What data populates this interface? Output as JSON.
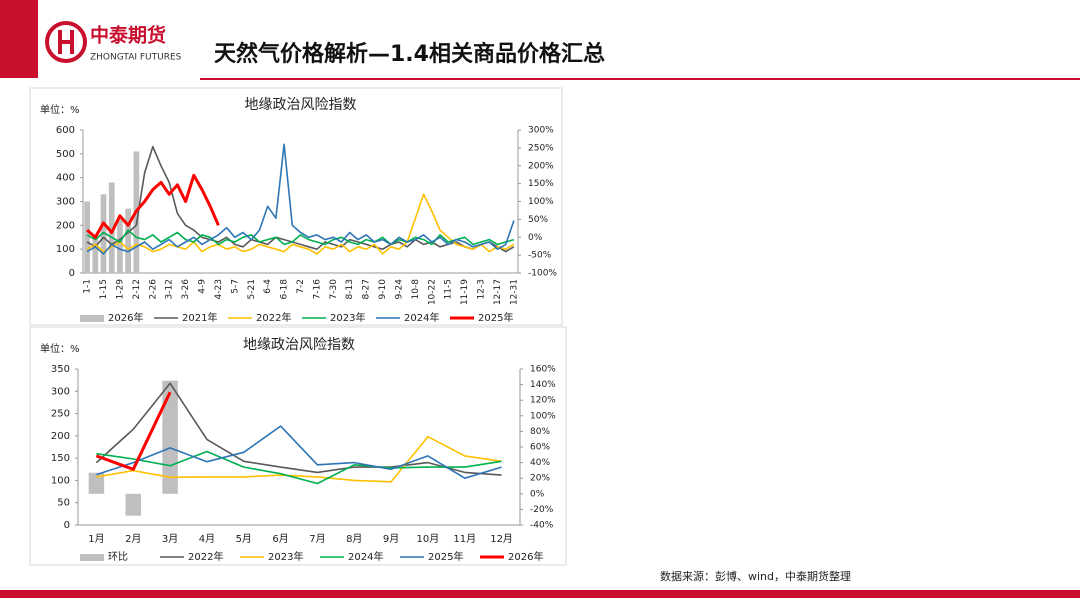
{
  "header": {
    "logo_cn": "中泰期货",
    "logo_en": "ZHONGTAI FUTURES",
    "title": "天然气价格解析—1.4相关商品价格汇总"
  },
  "source": "数据来源：彭博、wind，中泰期货整理",
  "chart_data": [
    {
      "type": "line",
      "title": "地缘政治风险指数",
      "ylabel": "单位：%",
      "categories": [
        "1-1",
        null,
        "1-15",
        null,
        "1-29",
        null,
        "2-12",
        null,
        "2-26",
        null,
        "3-12",
        null,
        "3-26",
        null,
        "4-9",
        null,
        "4-23",
        null,
        "5-7",
        null,
        "5-21",
        null,
        "6-4",
        null,
        "6-18",
        null,
        "7-2",
        null,
        "7-16",
        null,
        "7-30",
        null,
        "8-13",
        null,
        "8-27",
        null,
        "9-10",
        null,
        "9-24",
        null,
        "10-8",
        null,
        "10-22",
        null,
        "11-5",
        null,
        "11-19",
        null,
        "12-3",
        null,
        "12-17",
        null,
        "12-31"
      ],
      "ylim": [
        0,
        600
      ],
      "yticks": [
        0,
        100,
        200,
        300,
        400,
        500,
        600
      ],
      "y2lim": [
        -100,
        300
      ],
      "y2ticks": [
        {
          "value": -100,
          "label": "-100%"
        },
        {
          "value": -50,
          "label": "-50%"
        },
        {
          "value": 0,
          "label": "0%"
        },
        {
          "value": 50,
          "label": "50%"
        },
        {
          "value": 100,
          "label": "100%"
        },
        {
          "value": 150,
          "label": "150%"
        },
        {
          "value": 200,
          "label": "200%"
        },
        {
          "value": 250,
          "label": "250%"
        },
        {
          "value": 300,
          "label": "300%"
        }
      ],
      "series": [
        {
          "name": "2026年",
          "type": "bar",
          "color": "#bfbfbf",
          "values": [
            300,
            160,
            330,
            380,
            230,
            270,
            510,
            null,
            null,
            null,
            null,
            null,
            null,
            null,
            null,
            null,
            null,
            null,
            null,
            null,
            null,
            null,
            null,
            null,
            null,
            null,
            null,
            null,
            null,
            null,
            null,
            null,
            null,
            null,
            null,
            null,
            null,
            null,
            null,
            null,
            null,
            null,
            null,
            null,
            null,
            null,
            null,
            null,
            null,
            null,
            null,
            null,
            null
          ]
        },
        {
          "name": "2021年",
          "color": "#595959",
          "values": [
            130,
            110,
            150,
            120,
            140,
            170,
            200,
            420,
            530,
            450,
            380,
            250,
            200,
            180,
            150,
            140,
            130,
            150,
            120,
            110,
            140,
            130,
            120,
            150,
            140,
            130,
            120,
            110,
            100,
            130,
            120,
            110,
            140,
            130,
            120,
            110,
            100,
            120,
            130,
            110,
            140,
            120,
            130,
            110,
            120,
            130,
            110,
            100,
            120,
            130,
            110,
            90,
            110
          ]
        },
        {
          "name": "2022年",
          "color": "#ffc000",
          "values": [
            100,
            120,
            90,
            110,
            130,
            100,
            120,
            110,
            90,
            100,
            120,
            110,
            100,
            130,
            90,
            110,
            120,
            100,
            110,
            90,
            100,
            120,
            110,
            100,
            90,
            120,
            110,
            100,
            80,
            110,
            100,
            120,
            90,
            110,
            100,
            120,
            80,
            110,
            100,
            130,
            230,
            330,
            260,
            180,
            150,
            120,
            110,
            100,
            120,
            90,
            110,
            100,
            120
          ]
        },
        {
          "name": "2023年",
          "color": "#00b050",
          "values": [
            160,
            140,
            170,
            150,
            130,
            180,
            150,
            140,
            160,
            130,
            150,
            170,
            140,
            130,
            160,
            150,
            120,
            140,
            130,
            150,
            160,
            130,
            140,
            150,
            120,
            130,
            160,
            140,
            130,
            120,
            140,
            150,
            130,
            120,
            140,
            130,
            150,
            120,
            140,
            130,
            150,
            140,
            120,
            160,
            130,
            140,
            150,
            120,
            130,
            140,
            120,
            130,
            140
          ]
        },
        {
          "name": "2024年",
          "color": "#2e75b6",
          "values": [
            90,
            110,
            80,
            120,
            100,
            90,
            110,
            130,
            100,
            120,
            140,
            110,
            130,
            150,
            120,
            140,
            160,
            190,
            150,
            170,
            140,
            180,
            280,
            230,
            540,
            200,
            170,
            150,
            160,
            140,
            150,
            130,
            170,
            140,
            160,
            130,
            140,
            120,
            150,
            130,
            140,
            160,
            130,
            150,
            120,
            140,
            130,
            110,
            120,
            130,
            100,
            120,
            220
          ]
        },
        {
          "name": "2025年",
          "color": "#ff0000",
          "width": 3,
          "values": [
            180,
            150,
            210,
            170,
            240,
            200,
            260,
            300,
            350,
            380,
            330,
            370,
            300,
            410,
            350,
            280,
            200,
            null,
            null,
            null,
            null,
            null,
            null,
            null,
            null,
            null,
            null,
            null,
            null,
            null,
            null,
            null,
            null,
            null,
            null,
            null,
            null,
            null,
            null,
            null,
            null,
            null,
            null,
            null,
            null,
            null,
            null,
            null,
            null,
            null,
            null,
            null,
            null
          ]
        }
      ]
    },
    {
      "type": "line",
      "title": "地缘政治风险指数",
      "ylabel": "单位：%",
      "categories": [
        "1月",
        "2月",
        "3月",
        "4月",
        "5月",
        "6月",
        "7月",
        "8月",
        "9月",
        "10月",
        "11月",
        "12月"
      ],
      "ylim": [
        0,
        350
      ],
      "yticks": [
        0,
        50,
        100,
        150,
        200,
        250,
        300,
        350
      ],
      "y2lim": [
        -40,
        160
      ],
      "y2ticks": [
        {
          "value": -40,
          "label": "-40%"
        },
        {
          "value": -20,
          "label": "-20%"
        },
        {
          "value": 0,
          "label": "0%"
        },
        {
          "value": 20,
          "label": "20%"
        },
        {
          "value": 40,
          "label": "40%"
        },
        {
          "value": 60,
          "label": "60%"
        },
        {
          "value": 80,
          "label": "80%"
        },
        {
          "value": 100,
          "label": "100%"
        },
        {
          "value": 120,
          "label": "120%"
        },
        {
          "value": 140,
          "label": "140%"
        },
        {
          "value": 160,
          "label": "160%"
        }
      ],
      "series": [
        {
          "name": "环比",
          "type": "bar",
          "axis": "y2",
          "color": "#bfbfbf",
          "values": [
            27,
            -28,
            145,
            null,
            null,
            null,
            null,
            null,
            null,
            null,
            null,
            null
          ]
        },
        {
          "name": "2022年",
          "color": "#595959",
          "values": [
            140,
            215,
            318,
            192,
            143,
            130,
            118,
            130,
            130,
            140,
            118,
            112
          ]
        },
        {
          "name": "2023年",
          "color": "#ffc000",
          "values": [
            108,
            122,
            107,
            108,
            108,
            112,
            108,
            100,
            97,
            198,
            155,
            143
          ]
        },
        {
          "name": "2024年",
          "color": "#00b050",
          "values": [
            160,
            148,
            133,
            165,
            130,
            115,
            93,
            135,
            128,
            130,
            130,
            143
          ]
        },
        {
          "name": "2025年",
          "color": "#2e75b6",
          "values": [
            113,
            140,
            173,
            142,
            163,
            222,
            135,
            140,
            125,
            155,
            105,
            130
          ]
        },
        {
          "name": "2026年",
          "color": "#ff0000",
          "width": 3,
          "values": [
            155,
            125,
            298,
            null,
            null,
            null,
            null,
            null,
            null,
            null,
            null,
            null
          ]
        }
      ]
    }
  ]
}
